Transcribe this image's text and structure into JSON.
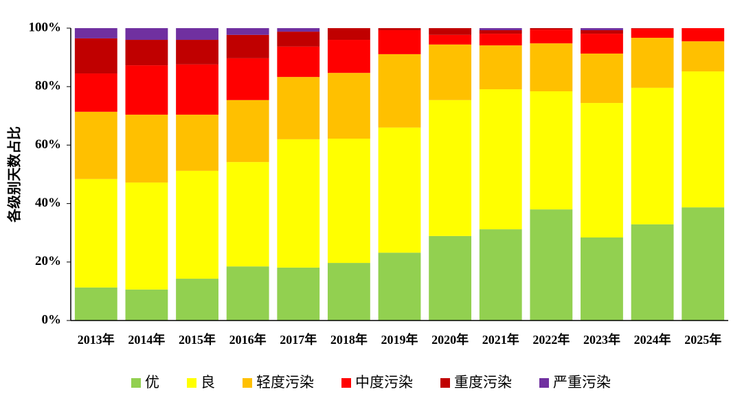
{
  "chart_data": {
    "type": "stacked_bar",
    "y_label": "各级别天数占比",
    "categories": [
      "2013年",
      "2014年",
      "2015年",
      "2016年",
      "2017年",
      "2018年",
      "2019年",
      "2020年",
      "2021年",
      "2022年",
      "2023年",
      "2024年",
      "2025年"
    ],
    "series": [
      {
        "name": "优",
        "color": "#92d050",
        "values": [
          11.3,
          10.6,
          14.3,
          18.5,
          18.1,
          19.7,
          23.2,
          28.9,
          31.2,
          38.0,
          28.4,
          32.9,
          38.7
        ]
      },
      {
        "name": "良",
        "color": "#ffff00",
        "values": [
          37.1,
          36.6,
          36.9,
          35.7,
          43.9,
          42.5,
          42.8,
          46.5,
          47.9,
          40.4,
          46.0,
          46.7,
          46.5
        ]
      },
      {
        "name": "轻度污染",
        "color": "#ffc000",
        "values": [
          23.0,
          23.2,
          19.2,
          21.2,
          21.3,
          22.5,
          25.1,
          19.0,
          15.0,
          16.4,
          16.9,
          17.1,
          10.3
        ]
      },
      {
        "name": "中度污染",
        "color": "#ff0000",
        "values": [
          13.1,
          16.9,
          17.2,
          14.3,
          10.4,
          11.3,
          8.2,
          3.3,
          4.0,
          4.7,
          6.8,
          3.1,
          4.5
        ]
      },
      {
        "name": "重度污染",
        "color": "#c00000",
        "values": [
          12.0,
          8.7,
          8.4,
          8.0,
          5.1,
          4.0,
          0.7,
          2.3,
          1.2,
          0.5,
          1.2,
          0.2,
          0
        ]
      },
      {
        "name": "严重污染",
        "color": "#7030a0",
        "values": [
          3.5,
          4.0,
          4.0,
          2.3,
          1.2,
          0,
          0,
          0,
          0.7,
          0,
          0.7,
          0,
          0
        ]
      }
    ],
    "ylim": [
      0,
      100
    ],
    "yticks": [
      {
        "value": 0,
        "label": "0%"
      },
      {
        "value": 20,
        "label": "20%"
      },
      {
        "value": 40,
        "label": "40%"
      },
      {
        "value": 60,
        "label": "60%"
      },
      {
        "value": 80,
        "label": "80%"
      },
      {
        "value": 100,
        "label": "100%"
      }
    ],
    "legend": "bottom"
  }
}
